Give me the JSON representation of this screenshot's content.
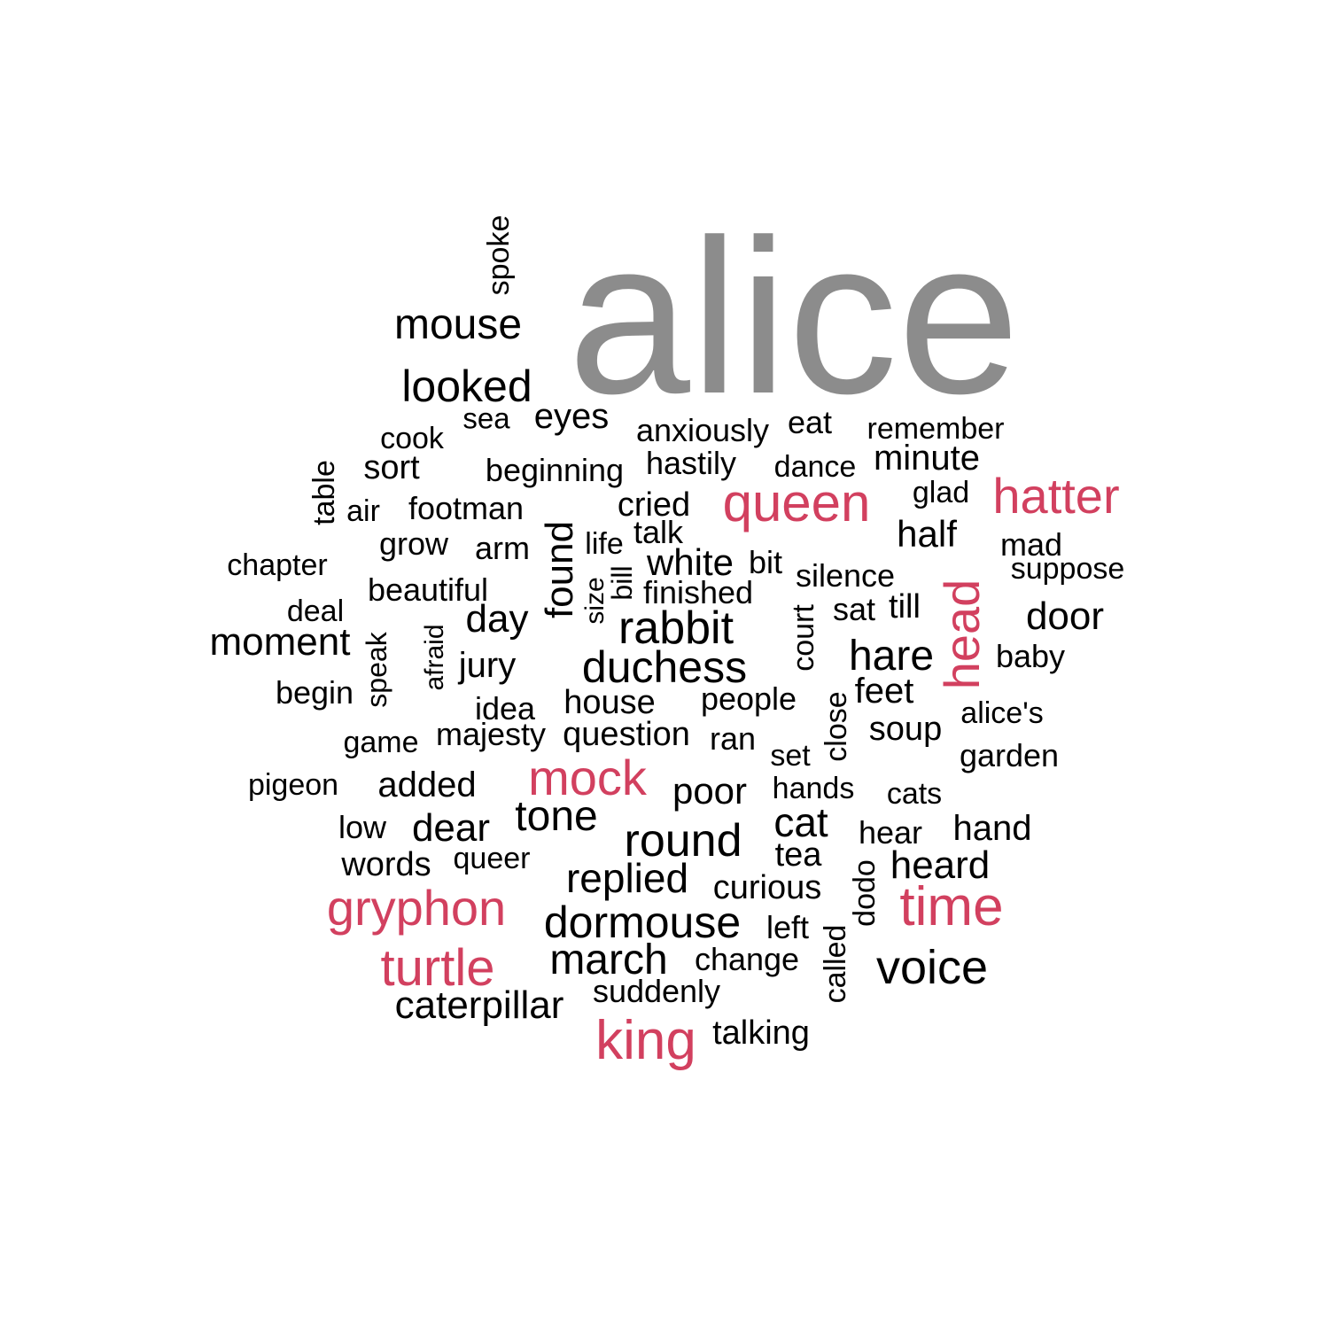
{
  "colors": {
    "background": "#ffffff",
    "tier_gray": "#8c8c8c",
    "tier_red": "#d2405f",
    "tier_black": "#000000"
  },
  "words": [
    {
      "text": "alice",
      "color": "tier_gray"
    },
    {
      "text": "queen",
      "color": "tier_red"
    },
    {
      "text": "hatter",
      "color": "tier_red"
    },
    {
      "text": "head",
      "color": "tier_red"
    },
    {
      "text": "mock",
      "color": "tier_red"
    },
    {
      "text": "gryphon",
      "color": "tier_red"
    },
    {
      "text": "time",
      "color": "tier_red"
    },
    {
      "text": "turtle",
      "color": "tier_red"
    },
    {
      "text": "king",
      "color": "tier_red"
    },
    {
      "text": "spoke",
      "color": "tier_black"
    },
    {
      "text": "mouse",
      "color": "tier_black"
    },
    {
      "text": "looked",
      "color": "tier_black"
    },
    {
      "text": "sea",
      "color": "tier_black"
    },
    {
      "text": "eyes",
      "color": "tier_black"
    },
    {
      "text": "anxiously",
      "color": "tier_black"
    },
    {
      "text": "eat",
      "color": "tier_black"
    },
    {
      "text": "remember",
      "color": "tier_black"
    },
    {
      "text": "cook",
      "color": "tier_black"
    },
    {
      "text": "sort",
      "color": "tier_black"
    },
    {
      "text": "beginning",
      "color": "tier_black"
    },
    {
      "text": "hastily",
      "color": "tier_black"
    },
    {
      "text": "dance",
      "color": "tier_black"
    },
    {
      "text": "minute",
      "color": "tier_black"
    },
    {
      "text": "table",
      "color": "tier_black"
    },
    {
      "text": "air",
      "color": "tier_black"
    },
    {
      "text": "footman",
      "color": "tier_black"
    },
    {
      "text": "cried",
      "color": "tier_black"
    },
    {
      "text": "glad",
      "color": "tier_black"
    },
    {
      "text": "found",
      "color": "tier_black"
    },
    {
      "text": "talk",
      "color": "tier_black"
    },
    {
      "text": "half",
      "color": "tier_black"
    },
    {
      "text": "grow",
      "color": "tier_black"
    },
    {
      "text": "arm",
      "color": "tier_black"
    },
    {
      "text": "life",
      "color": "tier_black"
    },
    {
      "text": "mad",
      "color": "tier_black"
    },
    {
      "text": "chapter",
      "color": "tier_black"
    },
    {
      "text": "white",
      "color": "tier_black"
    },
    {
      "text": "bit",
      "color": "tier_black"
    },
    {
      "text": "suppose",
      "color": "tier_black"
    },
    {
      "text": "bill",
      "color": "tier_black"
    },
    {
      "text": "silence",
      "color": "tier_black"
    },
    {
      "text": "beautiful",
      "color": "tier_black"
    },
    {
      "text": "size",
      "color": "tier_black"
    },
    {
      "text": "finished",
      "color": "tier_black"
    },
    {
      "text": "deal",
      "color": "tier_black"
    },
    {
      "text": "day",
      "color": "tier_black"
    },
    {
      "text": "sat",
      "color": "tier_black"
    },
    {
      "text": "till",
      "color": "tier_black"
    },
    {
      "text": "door",
      "color": "tier_black"
    },
    {
      "text": "court",
      "color": "tier_black"
    },
    {
      "text": "moment",
      "color": "tier_black"
    },
    {
      "text": "speak",
      "color": "tier_black"
    },
    {
      "text": "afraid",
      "color": "tier_black"
    },
    {
      "text": "rabbit",
      "color": "tier_black"
    },
    {
      "text": "jury",
      "color": "tier_black"
    },
    {
      "text": "duchess",
      "color": "tier_black"
    },
    {
      "text": "hare",
      "color": "tier_black"
    },
    {
      "text": "baby",
      "color": "tier_black"
    },
    {
      "text": "begin",
      "color": "tier_black"
    },
    {
      "text": "feet",
      "color": "tier_black"
    },
    {
      "text": "close",
      "color": "tier_black"
    },
    {
      "text": "idea",
      "color": "tier_black"
    },
    {
      "text": "house",
      "color": "tier_black"
    },
    {
      "text": "people",
      "color": "tier_black"
    },
    {
      "text": "alice's",
      "color": "tier_black"
    },
    {
      "text": "game",
      "color": "tier_black"
    },
    {
      "text": "majesty",
      "color": "tier_black"
    },
    {
      "text": "question",
      "color": "tier_black"
    },
    {
      "text": "ran",
      "color": "tier_black"
    },
    {
      "text": "soup",
      "color": "tier_black"
    },
    {
      "text": "set",
      "color": "tier_black"
    },
    {
      "text": "garden",
      "color": "tier_black"
    },
    {
      "text": "pigeon",
      "color": "tier_black"
    },
    {
      "text": "added",
      "color": "tier_black"
    },
    {
      "text": "poor",
      "color": "tier_black"
    },
    {
      "text": "hands",
      "color": "tier_black"
    },
    {
      "text": "cats",
      "color": "tier_black"
    },
    {
      "text": "low",
      "color": "tier_black"
    },
    {
      "text": "dear",
      "color": "tier_black"
    },
    {
      "text": "tone",
      "color": "tier_black"
    },
    {
      "text": "cat",
      "color": "tier_black"
    },
    {
      "text": "hear",
      "color": "tier_black"
    },
    {
      "text": "hand",
      "color": "tier_black"
    },
    {
      "text": "round",
      "color": "tier_black"
    },
    {
      "text": "words",
      "color": "tier_black"
    },
    {
      "text": "queer",
      "color": "tier_black"
    },
    {
      "text": "tea",
      "color": "tier_black"
    },
    {
      "text": "dodo",
      "color": "tier_black"
    },
    {
      "text": "heard",
      "color": "tier_black"
    },
    {
      "text": "replied",
      "color": "tier_black"
    },
    {
      "text": "curious",
      "color": "tier_black"
    },
    {
      "text": "dormouse",
      "color": "tier_black"
    },
    {
      "text": "left",
      "color": "tier_black"
    },
    {
      "text": "called",
      "color": "tier_black"
    },
    {
      "text": "march",
      "color": "tier_black"
    },
    {
      "text": "change",
      "color": "tier_black"
    },
    {
      "text": "voice",
      "color": "tier_black"
    },
    {
      "text": "suddenly",
      "color": "tier_black"
    },
    {
      "text": "caterpillar",
      "color": "tier_black"
    },
    {
      "text": "talking",
      "color": "tier_black"
    }
  ]
}
